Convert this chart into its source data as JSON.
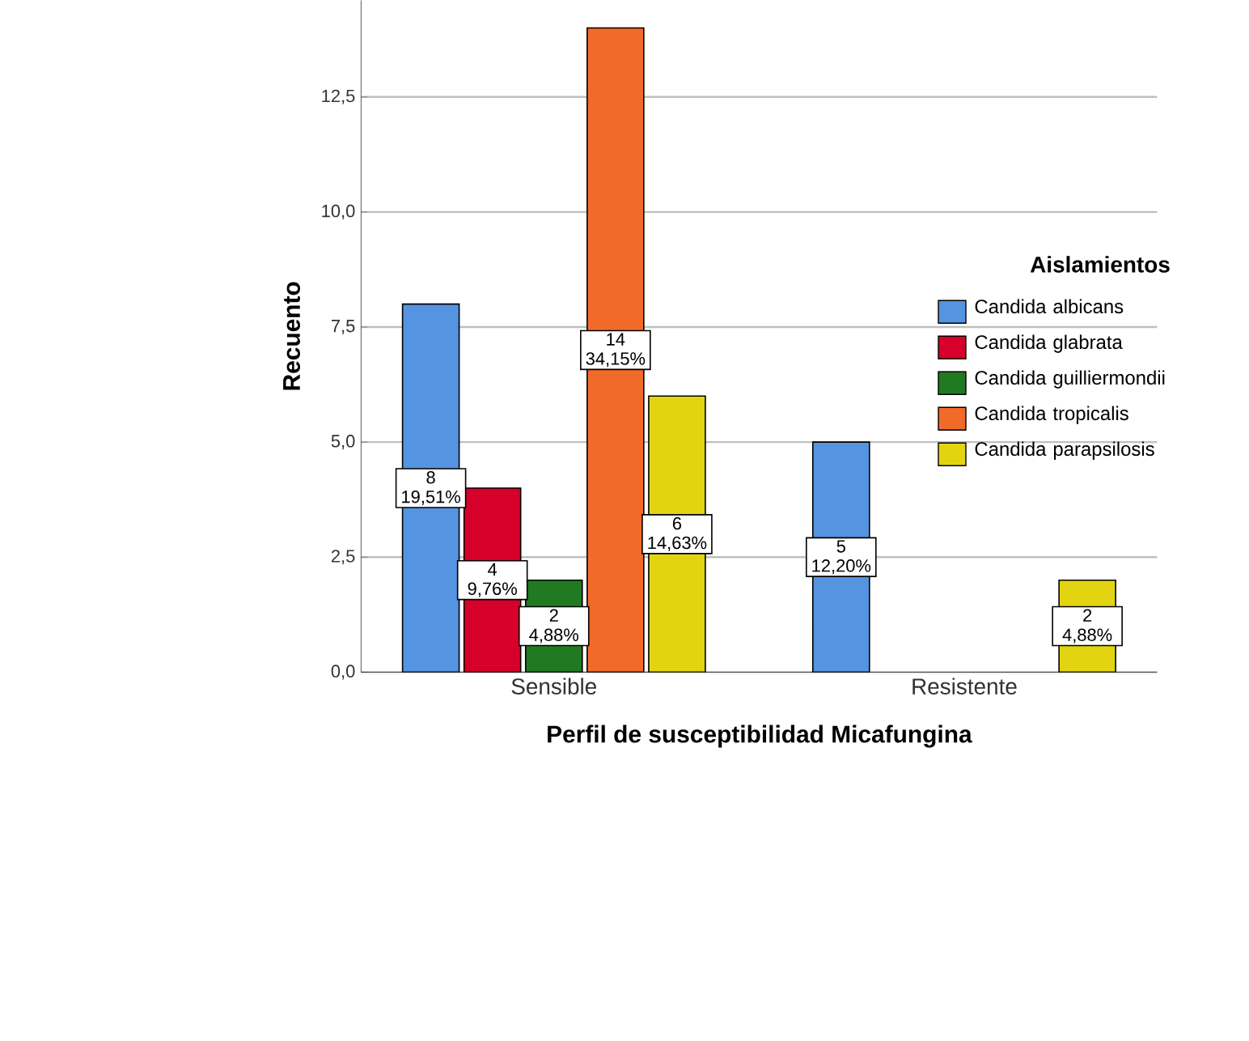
{
  "chart_data": {
    "type": "bar",
    "xlabel": "Perfil de susceptibilidad Micafungina",
    "ylabel": "Recuento",
    "legend_title": "Aislamientos",
    "categories": [
      "Sensible",
      "Resistente"
    ],
    "series": [
      {
        "name": "Candida albicans",
        "color": "#5594e0",
        "values": [
          8,
          5
        ],
        "value_labels": [
          "8 19,51%",
          "5 12,20%"
        ]
      },
      {
        "name": "Candida glabrata",
        "color": "#d6002a",
        "values": [
          4,
          null
        ],
        "value_labels": [
          "4 9,76%",
          null
        ]
      },
      {
        "name": "Candida guilliermondii",
        "color": "#217a21",
        "values": [
          2,
          null
        ],
        "value_labels": [
          "2 4,88%",
          null
        ]
      },
      {
        "name": "Candida tropicalis",
        "color": "#f26a2a",
        "values": [
          14,
          null
        ],
        "value_labels": [
          "14 34,15%",
          null
        ]
      },
      {
        "name": "Candida parapsilosis",
        "color": "#e3d411",
        "values": [
          6,
          2
        ],
        "value_labels": [
          "6 14,63%",
          "2 4,88%"
        ]
      }
    ],
    "ylim": [
      0,
      14.6
    ],
    "yticks": [
      {
        "value": 0,
        "label": "0,0"
      },
      {
        "value": 2.5,
        "label": "2,5"
      },
      {
        "value": 5,
        "label": "5,0"
      },
      {
        "value": 7.5,
        "label": "7,5"
      },
      {
        "value": 10,
        "label": "10,0"
      },
      {
        "value": 12.5,
        "label": "12,5"
      }
    ],
    "grid": "y",
    "legend": "right"
  }
}
